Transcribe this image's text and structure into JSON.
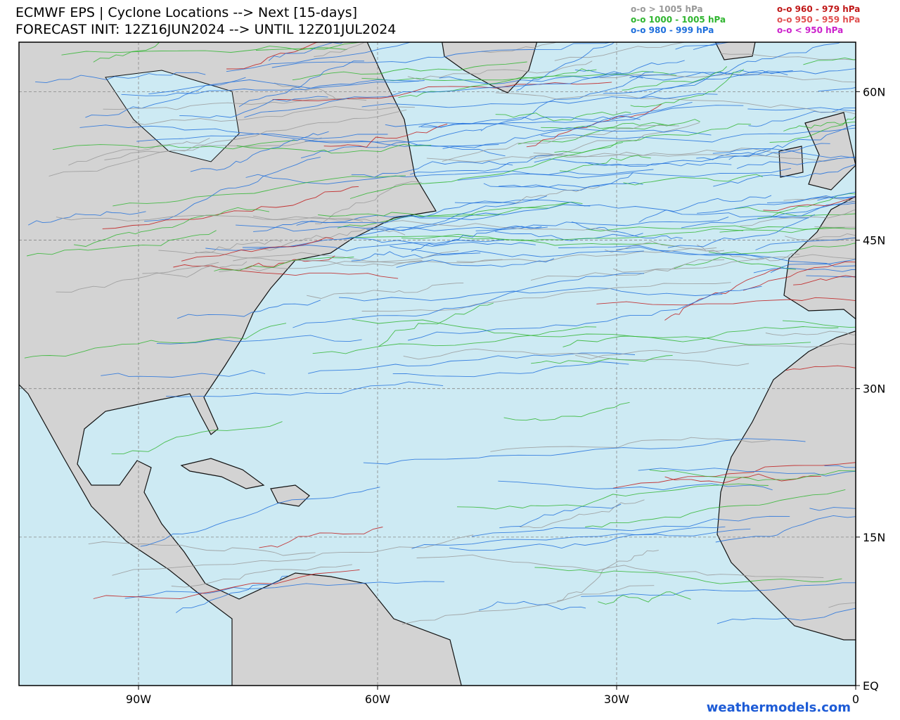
{
  "header": {
    "title": "ECMWF EPS | Cyclone Locations --> Next [15-days]",
    "subtitle": "FORECAST INIT: 12Z16JUN2024 --> UNTIL 12Z01JUL2024"
  },
  "legend": [
    {
      "label": "o-o > 1005 hPa",
      "color": "#999999"
    },
    {
      "label": "o-o 1000 - 1005 hPa",
      "color": "#2fb52f"
    },
    {
      "label": "o-o 980 - 999 hPa",
      "color": "#1f6fdc"
    },
    {
      "label": "o-o 960 - 979 hPa",
      "color": "#c01818"
    },
    {
      "label": "o-o 950 - 959 hPa",
      "color": "#e05050"
    },
    {
      "label": "o-o < 950 hPa",
      "color": "#cc22cc"
    }
  ],
  "map": {
    "lonlim": [
      -105,
      0
    ],
    "latlim": [
      0,
      65
    ],
    "lon_ticks": [
      {
        "value": -90,
        "label": "90W"
      },
      {
        "value": -60,
        "label": "60W"
      },
      {
        "value": -30,
        "label": "30W"
      },
      0
    ],
    "lat_ticks": [
      {
        "value": 0,
        "label": "EQ"
      },
      {
        "value": 15,
        "label": "15N"
      },
      {
        "value": 30,
        "label": "30N"
      },
      {
        "value": 45,
        "label": "45N"
      },
      {
        "value": 60,
        "label": "60N"
      }
    ]
  },
  "footer": {
    "credit": "weathermodels.com"
  }
}
